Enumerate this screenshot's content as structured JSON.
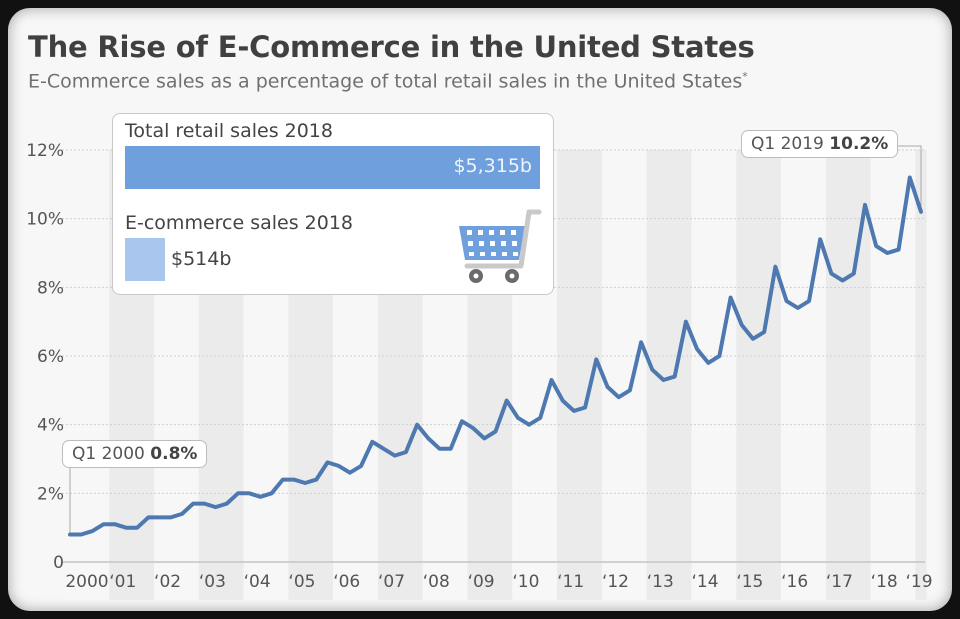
{
  "title": "The Rise of E-Commerce in the United States",
  "subtitle": "E-Commerce sales as a percentage of total retail sales in the United States",
  "subtitle_marker": "*",
  "infobox": {
    "total_label": "Total retail sales 2018",
    "total_value": "$5,315b",
    "ecom_label": "E-commerce sales 2018",
    "ecom_value": "$514b",
    "icon": "shopping-cart-icon",
    "colors": {
      "total": "#6fa0dd",
      "ecom": "#a9c7ee"
    }
  },
  "callouts": {
    "start": {
      "label": "Q1 2000",
      "value": "0.8%"
    },
    "end": {
      "label": "Q1 2019",
      "value": "10.2%"
    }
  },
  "chart_data": {
    "type": "line",
    "title": "The Rise of E-Commerce in the United States",
    "xlabel": "",
    "ylabel": "",
    "ylim": [
      0,
      12
    ],
    "y_ticks": [
      0,
      2,
      4,
      6,
      8,
      10,
      12
    ],
    "y_tick_labels": [
      "0",
      "2%",
      "4%",
      "6%",
      "8%",
      "10%",
      "12%"
    ],
    "x_tick_labels": [
      "2000",
      "‘01",
      "‘02",
      "‘03",
      "‘04",
      "‘05",
      "‘06",
      "‘07",
      "‘08",
      "‘09",
      "‘10",
      "‘11",
      "‘12",
      "‘13",
      "‘14",
      "‘15",
      "‘16",
      "‘17",
      "‘18",
      "‘19"
    ],
    "grid": "horizontal dotted",
    "alternating_year_bands": true,
    "x_start": "Q1 2000",
    "x_end": "Q1 2019",
    "series": [
      {
        "name": "E-Commerce share of total retail sales (%)",
        "color": "#4d78b0",
        "values": [
          0.8,
          0.8,
          0.9,
          1.1,
          1.1,
          1.0,
          1.0,
          1.3,
          1.3,
          1.3,
          1.4,
          1.7,
          1.7,
          1.6,
          1.7,
          2.0,
          2.0,
          1.9,
          2.0,
          2.4,
          2.4,
          2.3,
          2.4,
          2.9,
          2.8,
          2.6,
          2.8,
          3.5,
          3.3,
          3.1,
          3.2,
          4.0,
          3.6,
          3.3,
          3.3,
          4.1,
          3.9,
          3.6,
          3.8,
          4.7,
          4.2,
          4.0,
          4.2,
          5.3,
          4.7,
          4.4,
          4.5,
          5.9,
          5.1,
          4.8,
          5.0,
          6.4,
          5.6,
          5.3,
          5.4,
          7.0,
          6.2,
          5.8,
          6.0,
          7.7,
          6.9,
          6.5,
          6.7,
          8.6,
          7.6,
          7.4,
          7.6,
          9.4,
          8.4,
          8.2,
          8.4,
          10.4,
          9.2,
          9.0,
          9.1,
          11.2,
          10.2
        ]
      }
    ]
  }
}
